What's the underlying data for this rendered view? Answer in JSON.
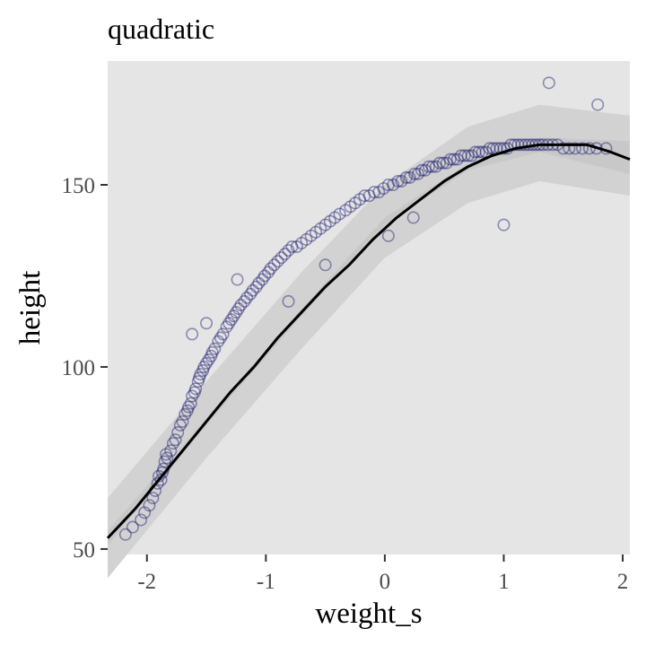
{
  "chart_data": {
    "type": "scatter",
    "title": "quadratic",
    "xlabel": "weight_s",
    "ylabel": "height",
    "xlim": [
      -2.33,
      2.06
    ],
    "ylim": [
      48.5,
      184
    ],
    "x_ticks": [
      -2,
      -1,
      0,
      1,
      2
    ],
    "x_tick_labels": [
      "-2",
      "-1",
      "0",
      "1",
      "2"
    ],
    "y_ticks": [
      50,
      100,
      150
    ],
    "y_tick_labels": [
      "50",
      "100",
      "150"
    ],
    "grid": false,
    "legend": "none",
    "series": [
      {
        "kind": "points",
        "color": "#1a1a6e",
        "x": [
          -2.18,
          -2.12,
          -2.05,
          -2.02,
          -1.98,
          -1.95,
          -1.93,
          -1.91,
          -1.9,
          -1.88,
          -1.87,
          -1.86,
          -1.85,
          -1.84,
          -1.83,
          -1.8,
          -1.78,
          -1.76,
          -1.74,
          -1.72,
          -1.7,
          -1.68,
          -1.66,
          -1.65,
          -1.63,
          -1.62,
          -1.6,
          -1.59,
          -1.57,
          -1.56,
          -1.55,
          -1.53,
          -1.52,
          -1.5,
          -1.48,
          -1.46,
          -1.45,
          -1.43,
          -1.4,
          -1.38,
          -1.36,
          -1.33,
          -1.31,
          -1.29,
          -1.27,
          -1.25,
          -1.23,
          -1.21,
          -1.18,
          -1.16,
          -1.13,
          -1.11,
          -1.08,
          -1.06,
          -1.03,
          -1.01,
          -0.98,
          -0.96,
          -0.93,
          -0.9,
          -0.87,
          -0.84,
          -0.81,
          -0.78,
          -0.74,
          -0.7,
          -0.66,
          -0.62,
          -0.58,
          -0.54,
          -0.5,
          -0.46,
          -0.42,
          -0.38,
          -0.33,
          -0.29,
          -0.25,
          -0.21,
          -0.17,
          -0.13,
          -0.09,
          -0.05,
          -0.01,
          0.03,
          0.07,
          0.11,
          0.14,
          0.18,
          0.21,
          0.25,
          0.28,
          0.31,
          0.34,
          0.37,
          0.4,
          0.43,
          0.46,
          0.49,
          0.52,
          0.55,
          0.58,
          0.61,
          0.64,
          0.67,
          0.7,
          0.73,
          0.76,
          0.79,
          0.82,
          0.85,
          0.88,
          0.91,
          0.94,
          0.97,
          1.0,
          1.03,
          1.06,
          1.09,
          1.12,
          1.15,
          1.18,
          1.21,
          1.24,
          1.27,
          1.3,
          1.33,
          1.37,
          1.41,
          1.45,
          1.5,
          1.55,
          1.6,
          1.66,
          1.72,
          1.78,
          1.86,
          -1.62,
          -1.5,
          -1.24,
          -0.81,
          -0.5,
          0.03,
          0.24,
          1.0,
          1.38,
          1.79
        ],
        "y": [
          54,
          56,
          58,
          60,
          62,
          64,
          66,
          68,
          70,
          69,
          71,
          72,
          74,
          76,
          75,
          77,
          79,
          80,
          82,
          84,
          85,
          87,
          88,
          89,
          90,
          92,
          93,
          94,
          96,
          97,
          98,
          99,
          100,
          101,
          102,
          103,
          104,
          105,
          107,
          108,
          109,
          111,
          112,
          113,
          114,
          115,
          116,
          117,
          118,
          119,
          120,
          121,
          122,
          123,
          124,
          125,
          126,
          127,
          128,
          129,
          130,
          131,
          132,
          133,
          133,
          134,
          135,
          136,
          137,
          138,
          139,
          140,
          141,
          142,
          143,
          144,
          145,
          146,
          147,
          147,
          148,
          148,
          149,
          150,
          150,
          151,
          151,
          152,
          152,
          153,
          153,
          154,
          154,
          155,
          155,
          155,
          156,
          156,
          156,
          157,
          157,
          157,
          158,
          158,
          158,
          158,
          159,
          159,
          159,
          159,
          160,
          160,
          160,
          160,
          160,
          160,
          161,
          161,
          161,
          161,
          161,
          161,
          161,
          161,
          161,
          161,
          161,
          161,
          161,
          160,
          160,
          160,
          160,
          160,
          160,
          160,
          109,
          112,
          124,
          118,
          128,
          136,
          141,
          139,
          178,
          172
        ]
      },
      {
        "kind": "mean_line",
        "color": "#000000",
        "x": [
          -2.33,
          -2.1,
          -1.9,
          -1.7,
          -1.5,
          -1.3,
          -1.1,
          -0.9,
          -0.7,
          -0.5,
          -0.3,
          -0.1,
          0.1,
          0.3,
          0.5,
          0.7,
          0.9,
          1.1,
          1.3,
          1.5,
          1.7,
          1.9,
          2.06
        ],
        "y": [
          53,
          61,
          69,
          77,
          85,
          93,
          100,
          108,
          115,
          122,
          128,
          135,
          141,
          146,
          151,
          155,
          158,
          160,
          161,
          161,
          161,
          159,
          157
        ]
      },
      {
        "kind": "mean_interval",
        "color": "#c8c8c8",
        "x": [
          -2.33,
          -1.5,
          -0.7,
          0.0,
          0.7,
          1.3,
          2.06
        ],
        "lower": [
          51,
          84,
          114,
          139,
          154,
          159,
          153
        ],
        "upper": [
          55,
          86,
          116,
          141,
          156,
          163,
          162
        ]
      },
      {
        "kind": "prediction_interval",
        "color": "#d2d2d2",
        "x": [
          -2.33,
          -1.5,
          -0.7,
          0.0,
          0.7,
          1.3,
          2.06
        ],
        "lower": [
          42,
          75,
          105,
          130,
          145,
          151,
          147
        ],
        "upper": [
          64,
          96,
          126,
          150,
          166,
          172,
          169
        ]
      }
    ]
  },
  "colors": {
    "panel": "#e5e5e5",
    "points": "#1a1a6e",
    "line": "#000000",
    "axis_text": "#4d4d4d"
  }
}
